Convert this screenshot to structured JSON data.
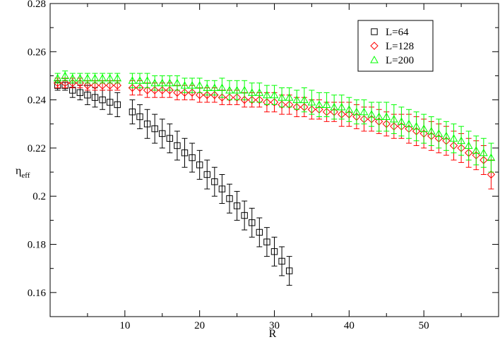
{
  "chart_data": {
    "type": "scatter",
    "xlabel": "R",
    "ylabel_main": "η",
    "ylabel_sub": "eff",
    "xlim": [
      0,
      60
    ],
    "ylim": [
      0.15,
      0.28
    ],
    "x_ticks": [
      10,
      20,
      30,
      40,
      50
    ],
    "x_tick_labels": [
      "10",
      "20",
      "30",
      "40",
      "50"
    ],
    "y_ticks": [
      0.16,
      0.18,
      0.2,
      0.22,
      0.24,
      0.26,
      0.28
    ],
    "y_tick_labels": [
      "0.16",
      "0.18",
      "0.2",
      "0.22",
      "0.24",
      "0.26",
      "0.28"
    ],
    "legend_position": "top-right",
    "grid": false,
    "series": [
      {
        "name": "L=64",
        "marker": "square",
        "color": "#000000",
        "x": [
          1,
          2,
          3,
          4,
          5,
          6,
          7,
          8,
          9,
          11,
          12,
          13,
          14,
          15,
          16,
          17,
          18,
          19,
          20,
          21,
          22,
          23,
          24,
          25,
          26,
          27,
          28,
          29,
          30,
          31,
          32
        ],
        "y": [
          0.246,
          0.246,
          0.244,
          0.243,
          0.242,
          0.241,
          0.24,
          0.239,
          0.238,
          0.235,
          0.233,
          0.23,
          0.228,
          0.226,
          0.224,
          0.221,
          0.218,
          0.216,
          0.213,
          0.209,
          0.206,
          0.203,
          0.199,
          0.196,
          0.192,
          0.189,
          0.185,
          0.181,
          0.177,
          0.173,
          0.169
        ],
        "err": [
          0.002,
          0.002,
          0.003,
          0.003,
          0.004,
          0.004,
          0.004,
          0.005,
          0.005,
          0.005,
          0.005,
          0.006,
          0.006,
          0.006,
          0.006,
          0.006,
          0.006,
          0.006,
          0.006,
          0.006,
          0.006,
          0.006,
          0.006,
          0.006,
          0.006,
          0.006,
          0.006,
          0.006,
          0.006,
          0.006,
          0.006
        ]
      },
      {
        "name": "L=128",
        "marker": "diamond",
        "color": "#ff0000",
        "x": [
          1,
          2,
          3,
          4,
          5,
          6,
          7,
          8,
          9,
          11,
          12,
          13,
          14,
          15,
          16,
          17,
          18,
          19,
          20,
          21,
          22,
          23,
          24,
          25,
          26,
          27,
          28,
          29,
          30,
          31,
          32,
          33,
          34,
          35,
          36,
          37,
          38,
          39,
          40,
          41,
          42,
          43,
          44,
          45,
          46,
          47,
          48,
          49,
          50,
          51,
          52,
          53,
          54,
          55,
          56,
          57,
          58,
          59
        ],
        "y": [
          0.247,
          0.247,
          0.247,
          0.247,
          0.246,
          0.246,
          0.246,
          0.246,
          0.246,
          0.245,
          0.245,
          0.244,
          0.244,
          0.244,
          0.244,
          0.243,
          0.243,
          0.243,
          0.242,
          0.242,
          0.242,
          0.241,
          0.241,
          0.241,
          0.24,
          0.24,
          0.24,
          0.239,
          0.239,
          0.238,
          0.238,
          0.237,
          0.237,
          0.236,
          0.236,
          0.235,
          0.235,
          0.234,
          0.234,
          0.233,
          0.232,
          0.232,
          0.231,
          0.23,
          0.229,
          0.229,
          0.228,
          0.227,
          0.226,
          0.225,
          0.224,
          0.223,
          0.221,
          0.22,
          0.218,
          0.217,
          0.215,
          0.209
        ],
        "err": [
          0.002,
          0.002,
          0.002,
          0.002,
          0.002,
          0.002,
          0.002,
          0.002,
          0.002,
          0.003,
          0.003,
          0.003,
          0.003,
          0.003,
          0.003,
          0.003,
          0.003,
          0.003,
          0.003,
          0.003,
          0.003,
          0.003,
          0.003,
          0.003,
          0.003,
          0.003,
          0.003,
          0.004,
          0.004,
          0.004,
          0.004,
          0.004,
          0.004,
          0.004,
          0.004,
          0.004,
          0.004,
          0.005,
          0.005,
          0.005,
          0.005,
          0.005,
          0.005,
          0.005,
          0.005,
          0.005,
          0.006,
          0.006,
          0.006,
          0.006,
          0.006,
          0.006,
          0.006,
          0.006,
          0.006,
          0.006,
          0.006,
          0.006
        ]
      },
      {
        "name": "L=200",
        "marker": "triangle",
        "color": "#00ff00",
        "x": [
          1,
          2,
          3,
          4,
          5,
          6,
          7,
          8,
          9,
          11,
          12,
          13,
          14,
          15,
          16,
          17,
          18,
          19,
          20,
          21,
          22,
          23,
          24,
          25,
          26,
          27,
          28,
          29,
          30,
          31,
          32,
          33,
          34,
          35,
          36,
          37,
          38,
          39,
          40,
          41,
          42,
          43,
          44,
          45,
          46,
          47,
          48,
          49,
          50,
          51,
          52,
          53,
          54,
          55,
          56,
          57,
          58,
          59
        ],
        "y": [
          0.249,
          0.25,
          0.249,
          0.249,
          0.249,
          0.249,
          0.249,
          0.249,
          0.249,
          0.248,
          0.248,
          0.248,
          0.247,
          0.247,
          0.247,
          0.247,
          0.246,
          0.246,
          0.246,
          0.245,
          0.245,
          0.245,
          0.244,
          0.244,
          0.244,
          0.243,
          0.243,
          0.242,
          0.242,
          0.241,
          0.241,
          0.24,
          0.24,
          0.239,
          0.238,
          0.238,
          0.237,
          0.237,
          0.236,
          0.235,
          0.235,
          0.234,
          0.233,
          0.233,
          0.232,
          0.231,
          0.23,
          0.229,
          0.228,
          0.227,
          0.226,
          0.225,
          0.224,
          0.223,
          0.221,
          0.219,
          0.218,
          0.216
        ],
        "err": [
          0.002,
          0.002,
          0.002,
          0.002,
          0.002,
          0.002,
          0.002,
          0.002,
          0.002,
          0.003,
          0.003,
          0.003,
          0.003,
          0.003,
          0.003,
          0.003,
          0.003,
          0.003,
          0.003,
          0.003,
          0.003,
          0.004,
          0.004,
          0.004,
          0.004,
          0.004,
          0.004,
          0.004,
          0.004,
          0.004,
          0.004,
          0.004,
          0.005,
          0.005,
          0.005,
          0.005,
          0.005,
          0.005,
          0.005,
          0.005,
          0.005,
          0.005,
          0.006,
          0.006,
          0.006,
          0.006,
          0.006,
          0.006,
          0.006,
          0.006,
          0.006,
          0.006,
          0.006,
          0.006,
          0.006,
          0.006,
          0.006,
          0.006
        ]
      }
    ]
  }
}
